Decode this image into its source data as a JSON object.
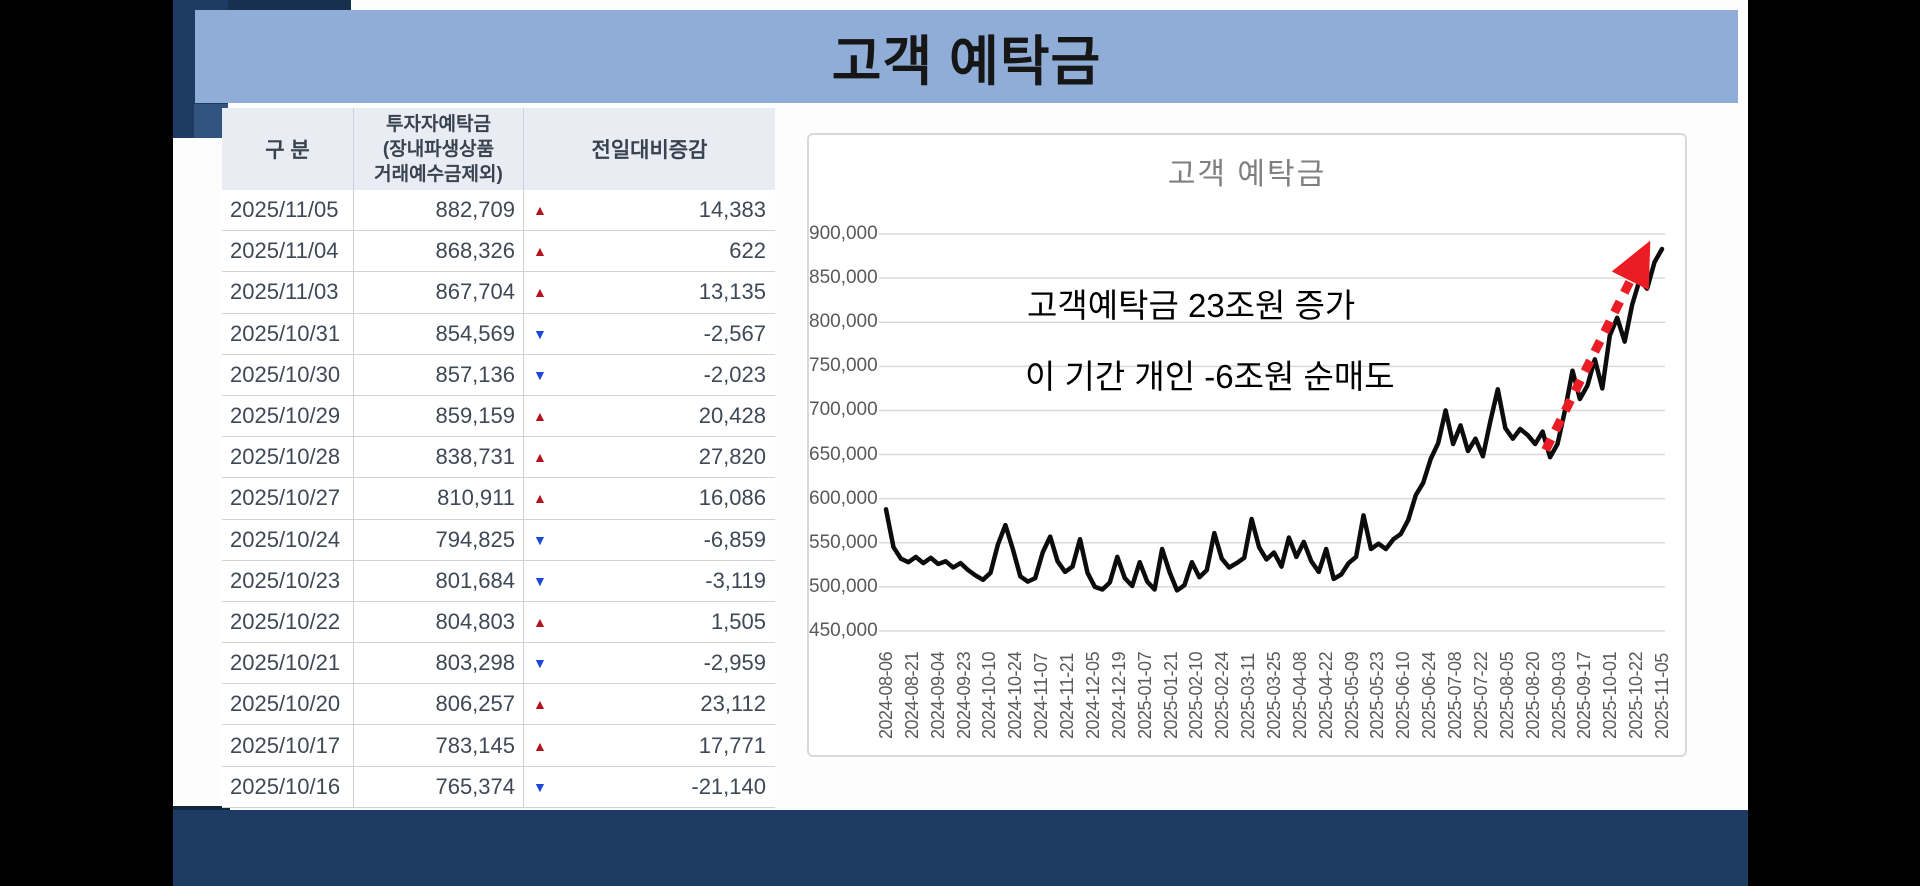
{
  "slide": {
    "title": "고객 예탁금"
  },
  "colors": {
    "background": "#000000",
    "navy": "#1d3b63",
    "navy_dark": "#17304e",
    "banner_blue": "#8fadd6",
    "up_triangle": "#b5121f",
    "down_triangle": "#1b49d8",
    "series_line": "#0c0c0c",
    "arrow_red": "#ec1c24",
    "grid_gray": "#d9d9d9",
    "axis_text": "#595959"
  },
  "table": {
    "headers": {
      "col1": "구 분",
      "col2_line1": "투자자예탁금",
      "col2_line2": "(장내파생상품",
      "col2_line3": "거래예수금제외)",
      "col3": "전일대비증감"
    },
    "up_glyph": "▲",
    "down_glyph": "▼",
    "rows": [
      {
        "date": "2025/11/05",
        "deposit": "882,709",
        "direction": "up",
        "change": "14,383"
      },
      {
        "date": "2025/11/04",
        "deposit": "868,326",
        "direction": "up",
        "change": "622"
      },
      {
        "date": "2025/11/03",
        "deposit": "867,704",
        "direction": "up",
        "change": "13,135"
      },
      {
        "date": "2025/10/31",
        "deposit": "854,569",
        "direction": "down",
        "change": "-2,567"
      },
      {
        "date": "2025/10/30",
        "deposit": "857,136",
        "direction": "down",
        "change": "-2,023"
      },
      {
        "date": "2025/10/29",
        "deposit": "859,159",
        "direction": "up",
        "change": "20,428"
      },
      {
        "date": "2025/10/28",
        "deposit": "838,731",
        "direction": "up",
        "change": "27,820"
      },
      {
        "date": "2025/10/27",
        "deposit": "810,911",
        "direction": "up",
        "change": "16,086"
      },
      {
        "date": "2025/10/24",
        "deposit": "794,825",
        "direction": "down",
        "change": "-6,859"
      },
      {
        "date": "2025/10/23",
        "deposit": "801,684",
        "direction": "down",
        "change": "-3,119"
      },
      {
        "date": "2025/10/22",
        "deposit": "804,803",
        "direction": "up",
        "change": "1,505"
      },
      {
        "date": "2025/10/21",
        "deposit": "803,298",
        "direction": "down",
        "change": "-2,959"
      },
      {
        "date": "2025/10/20",
        "deposit": "806,257",
        "direction": "up",
        "change": "23,112"
      },
      {
        "date": "2025/10/17",
        "deposit": "783,145",
        "direction": "up",
        "change": "17,771"
      },
      {
        "date": "2025/10/16",
        "deposit": "765,374",
        "direction": "down",
        "change": "-21,140"
      }
    ]
  },
  "chart_data": {
    "type": "line",
    "title": "고객 예탁금",
    "xlabel": "",
    "ylabel": "",
    "grid": true,
    "legend": "none",
    "y_min": 450000,
    "y_max": 900000,
    "y_step": 50000,
    "y_ticks": [
      "900,000",
      "850,000",
      "800,000",
      "750,000",
      "700,000",
      "650,000",
      "600,000",
      "550,000",
      "500,000",
      "450,000"
    ],
    "x_labels": [
      "2024-08-06",
      "2024-08-21",
      "2024-09-04",
      "2024-09-23",
      "2024-10-10",
      "2024-10-24",
      "2024-11-07",
      "2024-11-21",
      "2024-12-05",
      "2024-12-19",
      "2025-01-07",
      "2025-01-21",
      "2025-02-10",
      "2025-02-24",
      "2025-03-11",
      "2025-03-25",
      "2025-04-08",
      "2025-04-22",
      "2025-05-09",
      "2025-05-23",
      "2025-06-10",
      "2025-06-24",
      "2025-07-08",
      "2025-07-22",
      "2025-08-05",
      "2025-08-20",
      "2025-09-03",
      "2025-09-17",
      "2025-10-01",
      "2025-10-22",
      "2025-11-05"
    ],
    "series": [
      {
        "name": "고객 예탁금",
        "color": "#0c0c0c",
        "values": [
          588000,
          545000,
          532000,
          528000,
          534000,
          527000,
          533000,
          526000,
          529000,
          522000,
          527000,
          519000,
          513000,
          508000,
          516000,
          548000,
          570000,
          543000,
          512000,
          506000,
          510000,
          539000,
          557000,
          529000,
          517000,
          523000,
          554000,
          516000,
          500000,
          497000,
          505000,
          534000,
          510000,
          501000,
          528000,
          506000,
          497000,
          543000,
          517000,
          496000,
          502000,
          528000,
          511000,
          519000,
          561000,
          532000,
          522000,
          527000,
          533000,
          577000,
          545000,
          531000,
          539000,
          523000,
          556000,
          534000,
          551000,
          529000,
          517000,
          543000,
          509000,
          514000,
          527000,
          534000,
          581000,
          543000,
          549000,
          543000,
          554000,
          560000,
          576000,
          604000,
          618000,
          645000,
          663000,
          700000,
          662000,
          683000,
          654000,
          668000,
          648000,
          688000,
          724000,
          680000,
          668000,
          679000,
          672000,
          662000,
          676000,
          647000,
          662000,
          700000,
          745000,
          713000,
          728000,
          758000,
          725000,
          785000,
          805000,
          778000,
          820000,
          848000,
          838000,
          868000,
          883000
        ]
      }
    ],
    "annotations": [
      "고객예탁금 23조원 증가",
      "이 기간 개인 -6조원 순매도"
    ],
    "arrow": {
      "color": "#ec1c24",
      "style": "dotted",
      "from": {
        "x_index": 25.5,
        "value": 655000
      },
      "to": {
        "x_index": 29.3,
        "value": 878000
      }
    }
  }
}
